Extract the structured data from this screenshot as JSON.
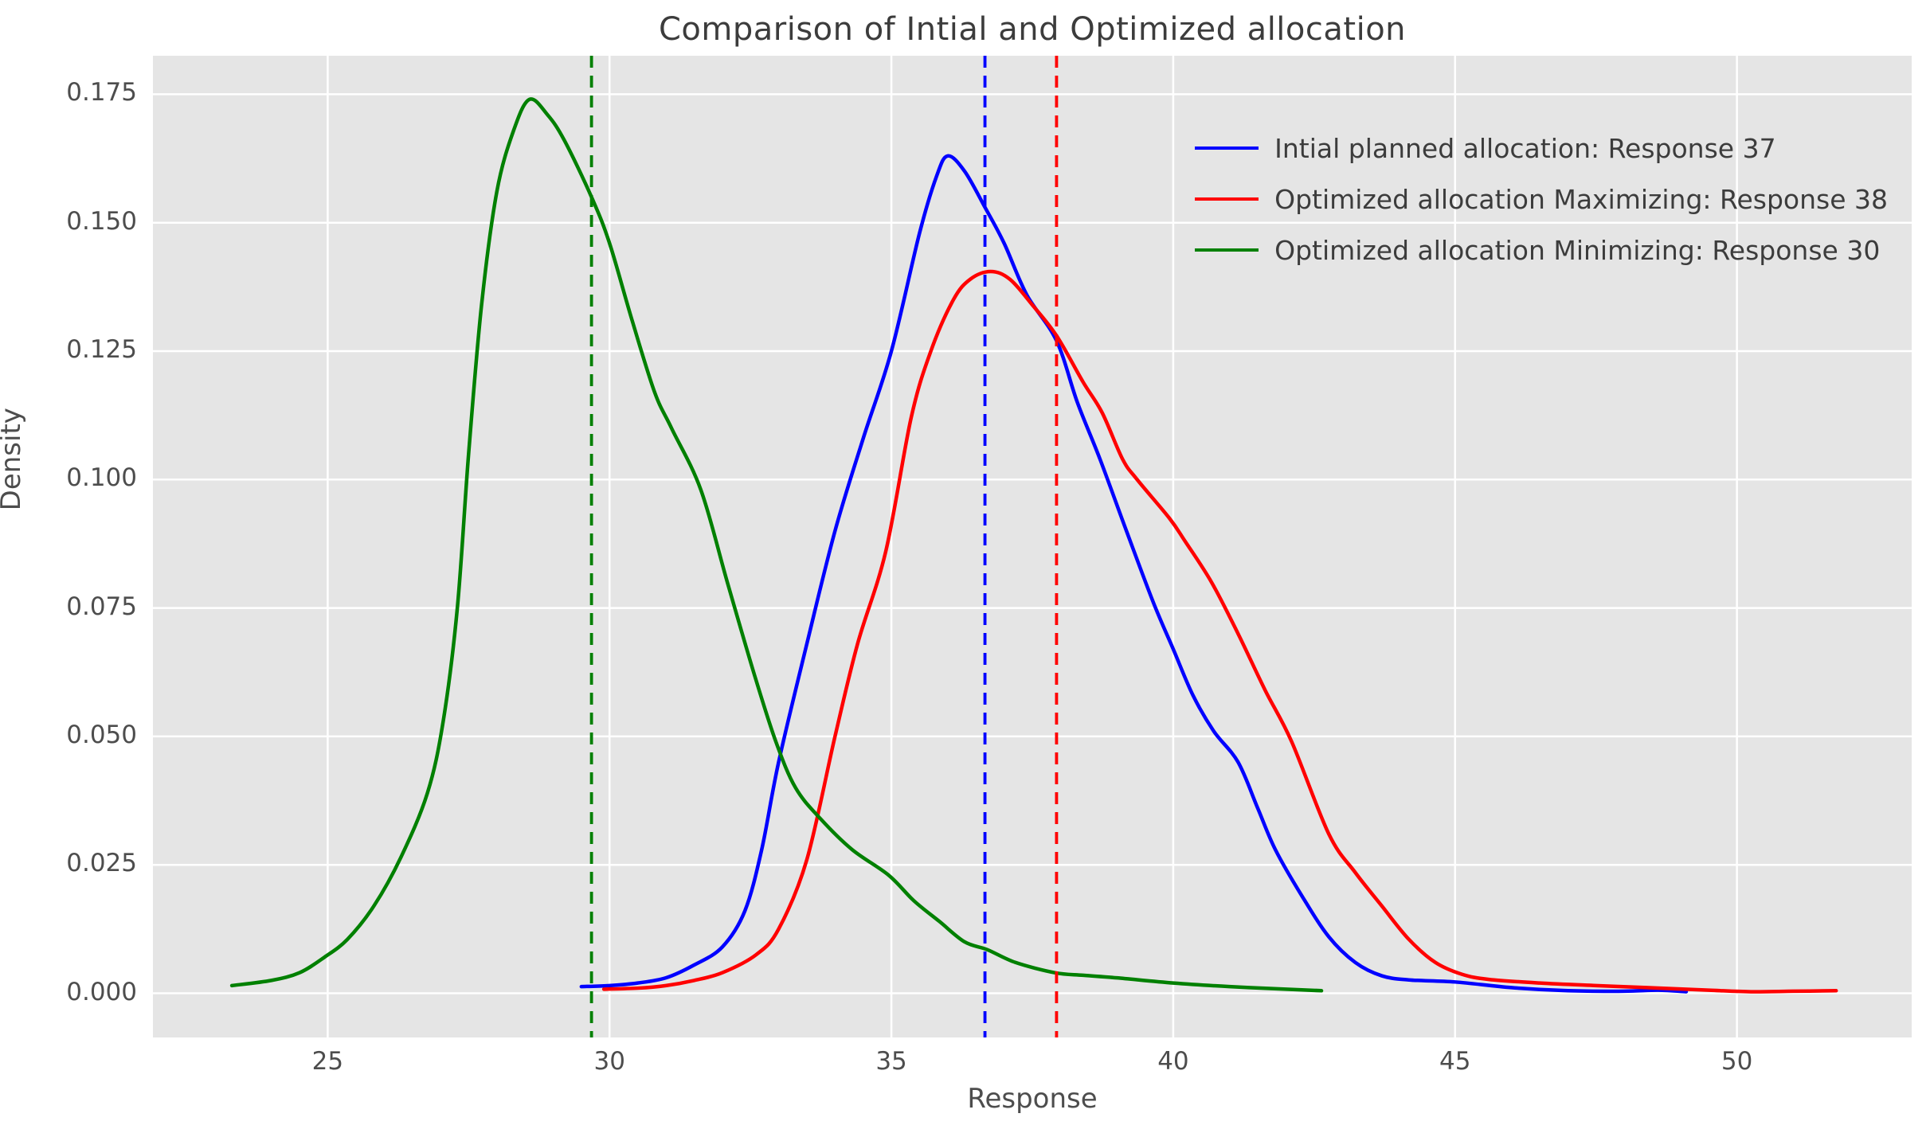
{
  "chart_data": {
    "type": "line",
    "subtype": "kde-density",
    "title": "Comparison of Intial and Optimized allocation",
    "xlabel": "Response",
    "ylabel": "Density",
    "xlim": [
      21.9,
      53.1
    ],
    "ylim": [
      -0.0086,
      0.1825
    ],
    "x_ticks": [
      25,
      30,
      35,
      40,
      45,
      50
    ],
    "y_ticks": [
      0.0,
      0.025,
      0.05,
      0.075,
      0.1,
      0.125,
      0.15,
      0.175
    ],
    "y_tick_labels": [
      "0.000",
      "0.025",
      "0.050",
      "0.075",
      "0.100",
      "0.125",
      "0.150",
      "0.175"
    ],
    "grid": true,
    "grid_color": "#ffffff",
    "background_color": "#e5e5e5",
    "figure_color": "#ffffff",
    "text_color": "#4d4d4d",
    "legend_position": "upper right",
    "series": [
      {
        "name": "Intial planned allocation: Response 37",
        "color": "#0000ff",
        "style": "solid",
        "points": [
          [
            29.5,
            0.0013
          ],
          [
            30,
            0.0015
          ],
          [
            30.5,
            0.002
          ],
          [
            31,
            0.003
          ],
          [
            31.5,
            0.0055
          ],
          [
            32,
            0.009
          ],
          [
            32.4,
            0.016
          ],
          [
            32.7,
            0.028
          ],
          [
            33,
            0.045
          ],
          [
            33.5,
            0.068
          ],
          [
            34,
            0.09
          ],
          [
            34.5,
            0.108
          ],
          [
            35,
            0.125
          ],
          [
            35.5,
            0.148
          ],
          [
            35.8,
            0.159
          ],
          [
            36.0,
            0.163
          ],
          [
            36.3,
            0.16
          ],
          [
            36.66,
            0.153
          ],
          [
            37.0,
            0.146
          ],
          [
            37.4,
            0.136
          ],
          [
            37.93,
            0.127
          ],
          [
            38.3,
            0.115
          ],
          [
            38.7,
            0.104
          ],
          [
            39.17,
            0.09
          ],
          [
            39.65,
            0.076
          ],
          [
            40.0,
            0.067
          ],
          [
            40.35,
            0.058
          ],
          [
            40.72,
            0.051
          ],
          [
            41.15,
            0.045
          ],
          [
            41.5,
            0.036
          ],
          [
            41.81,
            0.028
          ],
          [
            42.28,
            0.019
          ],
          [
            42.76,
            0.011
          ],
          [
            43.23,
            0.006
          ],
          [
            43.7,
            0.0034
          ],
          [
            44.18,
            0.0026
          ],
          [
            45,
            0.0022
          ],
          [
            46,
            0.0011
          ],
          [
            47,
            0.0005
          ],
          [
            48,
            0.0004
          ],
          [
            48.6,
            0.0006
          ],
          [
            49.1,
            0.0003
          ]
        ],
        "mean_line": {
          "x": 36.66,
          "style": "dashed"
        }
      },
      {
        "name": "Optimized allocation Maximizing: Response 38",
        "color": "#ff0000",
        "style": "solid",
        "points": [
          [
            29.9,
            0.0008
          ],
          [
            30.5,
            0.001
          ],
          [
            31,
            0.0015
          ],
          [
            31.5,
            0.0025
          ],
          [
            32,
            0.004
          ],
          [
            32.6,
            0.0075
          ],
          [
            33,
            0.0125
          ],
          [
            33.5,
            0.026
          ],
          [
            34,
            0.05
          ],
          [
            34.4,
            0.068
          ],
          [
            34.9,
            0.086
          ],
          [
            35.35,
            0.112
          ],
          [
            35.7,
            0.125
          ],
          [
            36.1,
            0.135
          ],
          [
            36.4,
            0.139
          ],
          [
            36.76,
            0.1405
          ],
          [
            37.1,
            0.139
          ],
          [
            37.5,
            0.134
          ],
          [
            37.93,
            0.128
          ],
          [
            38.4,
            0.119
          ],
          [
            38.74,
            0.113
          ],
          [
            39.1,
            0.104
          ],
          [
            39.36,
            0.1
          ],
          [
            39.93,
            0.0925
          ],
          [
            40.21,
            0.088
          ],
          [
            40.68,
            0.08
          ],
          [
            41.15,
            0.07
          ],
          [
            41.63,
            0.059
          ],
          [
            42.1,
            0.049
          ],
          [
            42.76,
            0.031
          ],
          [
            43.23,
            0.0235
          ],
          [
            43.7,
            0.017
          ],
          [
            44.18,
            0.0105
          ],
          [
            44.65,
            0.006
          ],
          [
            45.12,
            0.0037
          ],
          [
            45.6,
            0.0027
          ],
          [
            46.5,
            0.002
          ],
          [
            47.5,
            0.0015
          ],
          [
            48.4,
            0.0011
          ],
          [
            49.5,
            0.0006
          ],
          [
            50.25,
            0.0003
          ],
          [
            51,
            0.0004
          ],
          [
            51.76,
            0.0005
          ]
        ],
        "mean_line": {
          "x": 37.93,
          "style": "dashed"
        }
      },
      {
        "name": "Optimized allocation Minimizing: Response 30",
        "color": "#008000",
        "style": "solid",
        "points": [
          [
            23.3,
            0.0015
          ],
          [
            24,
            0.0025
          ],
          [
            24.5,
            0.004
          ],
          [
            24.94,
            0.007
          ],
          [
            25.35,
            0.0105
          ],
          [
            25.82,
            0.017
          ],
          [
            26.3,
            0.0265
          ],
          [
            26.77,
            0.039
          ],
          [
            27.05,
            0.053
          ],
          [
            27.3,
            0.075
          ],
          [
            27.5,
            0.105
          ],
          [
            27.73,
            0.134
          ],
          [
            28.0,
            0.156
          ],
          [
            28.3,
            0.168
          ],
          [
            28.58,
            0.174
          ],
          [
            28.9,
            0.171
          ],
          [
            29.2,
            0.166
          ],
          [
            29.68,
            0.155
          ],
          [
            30,
            0.146
          ],
          [
            30.4,
            0.131
          ],
          [
            30.8,
            0.117
          ],
          [
            31.1,
            0.11
          ],
          [
            31.62,
            0.098
          ],
          [
            32.09,
            0.08
          ],
          [
            32.57,
            0.062
          ],
          [
            32.95,
            0.049
          ],
          [
            33.3,
            0.04
          ],
          [
            33.74,
            0.034
          ],
          [
            34.3,
            0.028
          ],
          [
            34.95,
            0.023
          ],
          [
            35.4,
            0.018
          ],
          [
            35.85,
            0.014
          ],
          [
            36.3,
            0.01
          ],
          [
            36.7,
            0.0085
          ],
          [
            37.2,
            0.006
          ],
          [
            37.9,
            0.004
          ],
          [
            38.4,
            0.0035
          ],
          [
            39,
            0.003
          ],
          [
            40,
            0.002
          ],
          [
            41,
            0.0013
          ],
          [
            42,
            0.0008
          ],
          [
            42.63,
            0.0005
          ]
        ],
        "mean_line": {
          "x": 29.68,
          "style": "dashed"
        }
      }
    ],
    "annotations": []
  },
  "layout_values": {
    "line_width": 4.5,
    "dash_pattern": "15,10",
    "grid_line_width": 2.5
  }
}
